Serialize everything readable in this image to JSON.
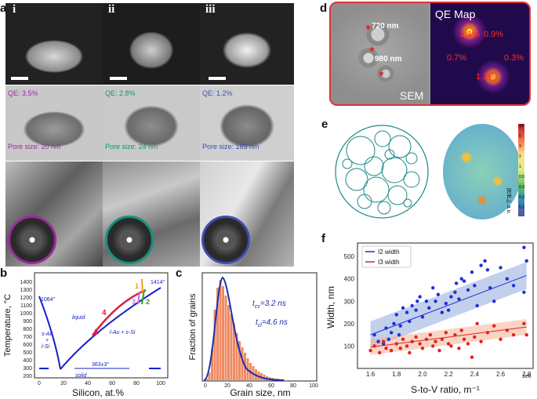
{
  "panel_labels": {
    "a": "a",
    "b": "b",
    "c": "c",
    "d": "d",
    "e": "e",
    "f": "f"
  },
  "panel_a": {
    "columns": [
      "i",
      "ii",
      "iii"
    ],
    "qe": [
      "QE: 3.5%",
      "QE: 2.8%",
      "QE: 1.2%"
    ],
    "pore_size": [
      "Pore size: 20 nm",
      "Pore size: 24 nm",
      "Pore size: 183 nm"
    ],
    "colors": [
      "#9b2aa0",
      "#15917a",
      "#3c4fb5"
    ]
  },
  "panel_b": {
    "ylabel": "Temperature, °C",
    "xlabel": "Silicon, at.%",
    "yticks": [
      "200",
      "300",
      "400",
      "500",
      "600",
      "700",
      "800",
      "900",
      "1000",
      "1100",
      "1200",
      "1300",
      "1400"
    ],
    "xticks": [
      "0",
      "20",
      "40",
      "60",
      "80",
      "100"
    ],
    "annotations": {
      "t1064": "1064°",
      "t1414": "1414°",
      "liquid": "liquid",
      "sAu_line1": "s-Au",
      "sAu_line2": "+",
      "sAu_line3": "l-Si",
      "lAu": "l-Au + s-Si",
      "eutectic": "363±3°",
      "solid": "solid",
      "n1": "1",
      "n2": "2",
      "n3": "3",
      "n4": "4"
    }
  },
  "panel_c": {
    "ylabel": "Fraction of grains",
    "xlabel": "Grain size, nm",
    "xticks": [
      "0",
      "20",
      "40",
      "60",
      "80",
      "100"
    ],
    "t_cv": "t",
    "t_cv_sub": "cv",
    "t_cv_val": "=3.2 ns",
    "t_cl": "t",
    "t_cl_sub": "cl",
    "t_cl_val": "=4.6 ns"
  },
  "panel_d": {
    "sem_label": "SEM",
    "map_title": "QE Map",
    "size1": "720 nm",
    "size2": "980 nm",
    "qe_values": [
      "2.1%",
      "0.9%",
      "0.7%",
      "0.3%",
      "1.2%"
    ]
  },
  "panel_e": {
    "cbar_label": "|E/E₀|, a.u.",
    "cbar_ticks": [
      "10",
      "5",
      "3",
      "2",
      "1",
      "0.5",
      "0.3",
      "0.2",
      "0.1"
    ]
  },
  "chart_data": {
    "type": "scatter",
    "xlabel": "S-to-V ratio, m⁻¹",
    "ylabel": "Width, nm",
    "x_multiplier": "1e8",
    "xlim": [
      1.5,
      2.85
    ],
    "ylim": [
      0,
      560
    ],
    "xticks": [
      1.6,
      1.8,
      2.0,
      2.2,
      2.4,
      2.6,
      2.8
    ],
    "xtick_labels": [
      "1.6",
      "1.8",
      "2.0",
      "2.2",
      "2.4",
      "2.6",
      "2.8"
    ],
    "yticks": [
      100,
      200,
      300,
      400,
      500
    ],
    "legend_position": "top-left",
    "series": [
      {
        "name": "I2 width",
        "color": "#1f2fd6",
        "points": [
          [
            1.63,
            150
          ],
          [
            1.66,
            120
          ],
          [
            1.7,
            110
          ],
          [
            1.72,
            180
          ],
          [
            1.74,
            130
          ],
          [
            1.76,
            160
          ],
          [
            1.78,
            200
          ],
          [
            1.8,
            240
          ],
          [
            1.82,
            150
          ],
          [
            1.83,
            190
          ],
          [
            1.85,
            270
          ],
          [
            1.88,
            250
          ],
          [
            1.9,
            210
          ],
          [
            1.92,
            280
          ],
          [
            1.95,
            260
          ],
          [
            1.96,
            300
          ],
          [
            1.98,
            320
          ],
          [
            2.0,
            230
          ],
          [
            2.03,
            300
          ],
          [
            2.05,
            270
          ],
          [
            2.08,
            360
          ],
          [
            2.1,
            300
          ],
          [
            2.12,
            330
          ],
          [
            2.15,
            250
          ],
          [
            2.18,
            290
          ],
          [
            2.2,
            260
          ],
          [
            2.22,
            320
          ],
          [
            2.25,
            340
          ],
          [
            2.26,
            380
          ],
          [
            2.28,
            310
          ],
          [
            2.3,
            400
          ],
          [
            2.32,
            390
          ],
          [
            2.35,
            350
          ],
          [
            2.38,
            430
          ],
          [
            2.4,
            370
          ],
          [
            2.42,
            280
          ],
          [
            2.45,
            460
          ],
          [
            2.48,
            480
          ],
          [
            2.5,
            440
          ],
          [
            2.52,
            360
          ],
          [
            2.55,
            300
          ],
          [
            2.6,
            450
          ],
          [
            2.65,
            400
          ],
          [
            2.7,
            370
          ],
          [
            2.78,
            540
          ],
          [
            2.78,
            340
          ],
          [
            2.8,
            480
          ]
        ],
        "trend": [
          [
            1.6,
            150
          ],
          [
            2.8,
            415
          ]
        ]
      },
      {
        "name": "I3 width",
        "color": "#e0231c",
        "points": [
          [
            1.6,
            80
          ],
          [
            1.63,
            100
          ],
          [
            1.67,
            70
          ],
          [
            1.7,
            120
          ],
          [
            1.72,
            90
          ],
          [
            1.76,
            80
          ],
          [
            1.8,
            110
          ],
          [
            1.83,
            90
          ],
          [
            1.85,
            130
          ],
          [
            1.88,
            100
          ],
          [
            1.9,
            70
          ],
          [
            1.92,
            120
          ],
          [
            1.95,
            140
          ],
          [
            1.98,
            110
          ],
          [
            2.0,
            90
          ],
          [
            2.03,
            130
          ],
          [
            2.06,
            150
          ],
          [
            2.08,
            100
          ],
          [
            2.1,
            120
          ],
          [
            2.13,
            80
          ],
          [
            2.15,
            130
          ],
          [
            2.18,
            160
          ],
          [
            2.2,
            110
          ],
          [
            2.22,
            100
          ],
          [
            2.25,
            150
          ],
          [
            2.28,
            90
          ],
          [
            2.3,
            170
          ],
          [
            2.32,
            130
          ],
          [
            2.35,
            110
          ],
          [
            2.38,
            50
          ],
          [
            2.4,
            140
          ],
          [
            2.42,
            200
          ],
          [
            2.45,
            120
          ],
          [
            2.5,
            160
          ],
          [
            2.55,
            190
          ],
          [
            2.6,
            130
          ],
          [
            2.65,
            170
          ],
          [
            2.7,
            150
          ],
          [
            2.78,
            200
          ],
          [
            2.8,
            150
          ]
        ],
        "trend": [
          [
            1.6,
            95
          ],
          [
            2.8,
            185
          ]
        ]
      }
    ]
  }
}
